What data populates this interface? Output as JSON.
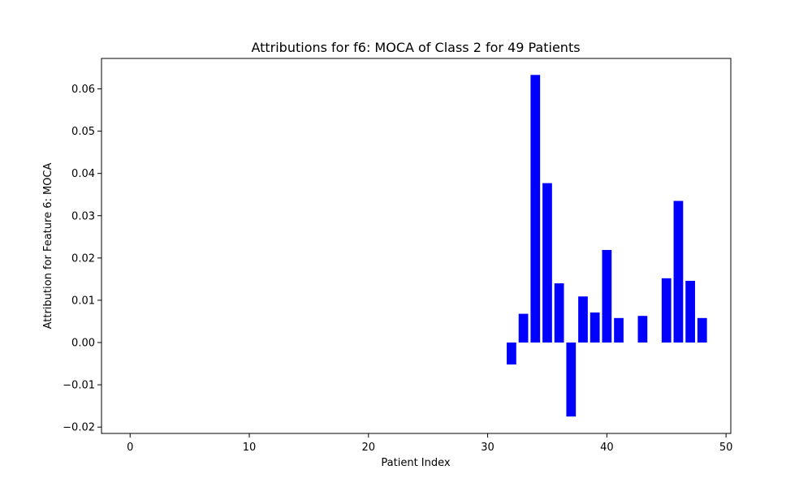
{
  "chart_data": {
    "type": "bar",
    "title": "Attributions for f6: MOCA of Class 2 for 49 Patients",
    "xlabel": "Patient Index",
    "ylabel": "Attribution for Feature 6: MOCA",
    "xlim": [
      -2.4,
      50.4
    ],
    "ylim": [
      -0.0215,
      0.0672
    ],
    "x_ticks": [
      0,
      10,
      20,
      30,
      40,
      50
    ],
    "y_ticks": [
      -0.02,
      -0.01,
      0.0,
      0.01,
      0.02,
      0.03,
      0.04,
      0.05,
      0.06
    ],
    "y_tick_labels": [
      "−0.02",
      "−0.01",
      "0.00",
      "0.01",
      "0.02",
      "0.03",
      "0.04",
      "0.05",
      "0.06"
    ],
    "bar_color": "#0000ff",
    "grid": false,
    "x": [
      0,
      1,
      2,
      3,
      4,
      5,
      6,
      7,
      8,
      9,
      10,
      11,
      12,
      13,
      14,
      15,
      16,
      17,
      18,
      19,
      20,
      21,
      22,
      23,
      24,
      25,
      26,
      27,
      28,
      29,
      30,
      31,
      32,
      33,
      34,
      35,
      36,
      37,
      38,
      39,
      40,
      41,
      42,
      43,
      44,
      45,
      46,
      47,
      48
    ],
    "values": [
      0,
      0,
      0,
      0,
      0,
      0,
      0,
      0,
      0,
      0,
      0,
      0,
      0,
      0,
      0,
      0,
      0,
      0,
      0,
      0,
      0,
      0,
      0,
      0,
      0,
      0,
      0,
      0,
      0,
      0,
      0,
      0,
      -0.0052,
      0.0068,
      0.0633,
      0.0377,
      0.014,
      -0.0175,
      0.0109,
      0.0071,
      0.0219,
      0.0058,
      0,
      0.0063,
      0,
      0.0152,
      0.0335,
      0.0146,
      0.0058
    ]
  }
}
